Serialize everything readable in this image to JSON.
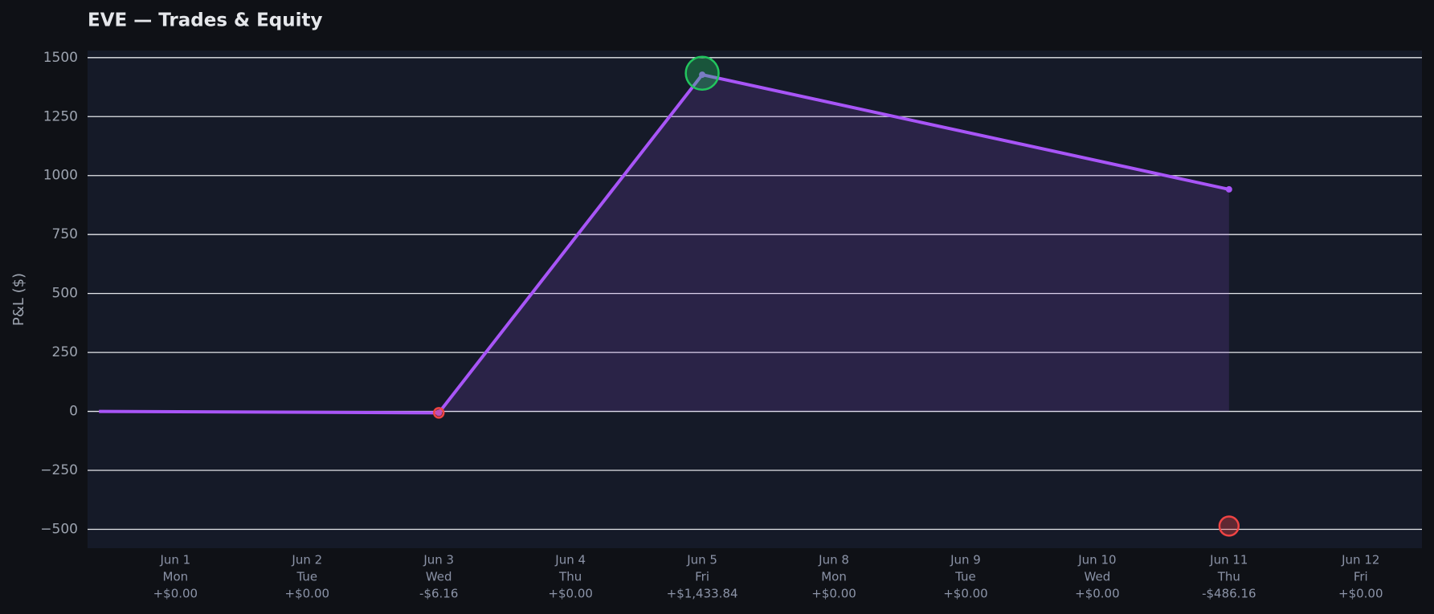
{
  "chart_data": {
    "type": "line",
    "title": "EVE — Trades & Equity",
    "ylabel": "P&L ($)",
    "categories": [
      "Jun 1",
      "Jun 2",
      "Jun 3",
      "Jun 4",
      "Jun 5",
      "Jun 8",
      "Jun 9",
      "Jun 10",
      "Jun 11",
      "Jun 12"
    ],
    "weekdays": [
      "Mon",
      "Tue",
      "Wed",
      "Thu",
      "Fri",
      "Mon",
      "Tue",
      "Wed",
      "Thu",
      "Fri"
    ],
    "daily_pnl": [
      0,
      0,
      -6.16,
      0,
      1433.84,
      0,
      0,
      0,
      -486.16,
      0
    ],
    "daily_pnl_labels": [
      "+$0.00",
      "+$0.00",
      "-$6.16",
      "+$0.00",
      "+$1,433.84",
      "+$0.00",
      "+$0.00",
      "+$0.00",
      "-$486.16",
      "+$0.00"
    ],
    "equity": {
      "x": [
        -0.58,
        2,
        4,
        8
      ],
      "values": [
        0,
        -6.16,
        1427.68,
        941.52
      ],
      "color": "#a855f7"
    },
    "trade_colors": {
      "win": "#22c55e",
      "loss": "#ef4444"
    },
    "xlim": [
      -0.667,
      9.465
    ],
    "ylim": [
      -580,
      1530
    ],
    "yticks": [
      {
        "value": -500,
        "label": "−500"
      },
      {
        "value": -250,
        "label": "−250"
      },
      0,
      250,
      500,
      750,
      1000,
      1250,
      1500
    ],
    "grid": true
  }
}
